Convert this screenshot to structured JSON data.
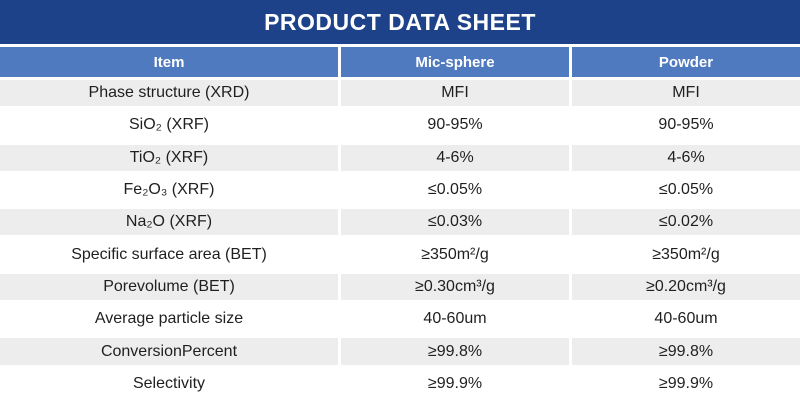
{
  "title_bar": {
    "title": "PRODUCT DATA SHEET",
    "bg_color": "#1E4289",
    "text_color": "#FFFFFF"
  },
  "table": {
    "header": {
      "bg_color": "#4F7ABF",
      "columns": [
        "Item",
        "Mic-sphere",
        "Powder"
      ]
    },
    "banded_row_color": "#EDEDED",
    "rows": [
      {
        "item": "Phase structure (XRD)",
        "mic_sphere": "MFI",
        "powder": "MFI"
      },
      {
        "item": "SiO₂ (XRF)",
        "mic_sphere": "90-95%",
        "powder": "90-95%"
      },
      {
        "item": "TiO₂ (XRF)",
        "mic_sphere": "4-6%",
        "powder": "4-6%"
      },
      {
        "item": "Fe₂O₃ (XRF)",
        "mic_sphere": "≤0.05%",
        "powder": "≤0.05%"
      },
      {
        "item": "Na₂O (XRF)",
        "mic_sphere": "≤0.03%",
        "powder": "≤0.02%"
      },
      {
        "item": "Specific surface area (BET)",
        "mic_sphere": "≥350m²/g",
        "powder": "≥350m²/g"
      },
      {
        "item": "Porevolume (BET)",
        "mic_sphere": "≥0.30cm³/g",
        "powder": "≥0.20cm³/g"
      },
      {
        "item": "Average particle size",
        "mic_sphere": "40-60um",
        "powder": "40-60um"
      },
      {
        "item": "ConversionPercent",
        "mic_sphere": "≥99.8%",
        "powder": "≥99.8%"
      },
      {
        "item": "Selectivity",
        "mic_sphere": "≥99.9%",
        "powder": "≥99.9%"
      }
    ]
  }
}
